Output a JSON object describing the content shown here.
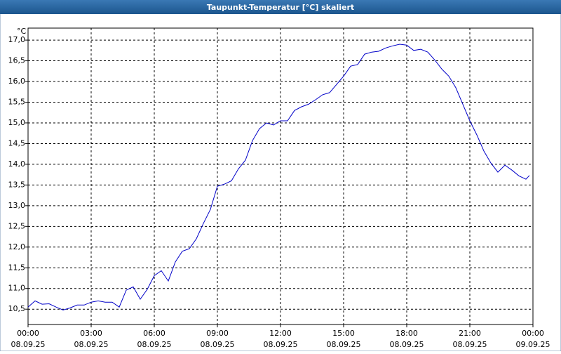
{
  "chart_data": {
    "type": "line",
    "title": "Taupunkt-Temperatur [°C] skaliert",
    "y_unit": "°C",
    "color": "#0000c8",
    "grid": true,
    "x": [
      0,
      20,
      40,
      60,
      80,
      100,
      120,
      140,
      160,
      180,
      200,
      220,
      240,
      260,
      280,
      300,
      320,
      340,
      360,
      380,
      400,
      420,
      440,
      460,
      480,
      500,
      520,
      540,
      560,
      580,
      600,
      620,
      640,
      660,
      680,
      700,
      720,
      740,
      760,
      780,
      800,
      820,
      840,
      860,
      880,
      900,
      920,
      940,
      960,
      980,
      1000,
      1020,
      1040,
      1060,
      1080,
      1100,
      1120,
      1140,
      1160,
      1180,
      1200,
      1220,
      1240,
      1260,
      1280,
      1300,
      1320,
      1340,
      1360,
      1380,
      1400,
      1420,
      1430
    ],
    "values": [
      10.55,
      10.7,
      10.62,
      10.63,
      10.55,
      10.48,
      10.53,
      10.6,
      10.6,
      10.67,
      10.7,
      10.67,
      10.67,
      10.55,
      10.96,
      11.04,
      10.74,
      10.98,
      11.31,
      11.43,
      11.18,
      11.64,
      11.9,
      11.96,
      12.2,
      12.57,
      12.91,
      13.47,
      13.52,
      13.6,
      13.89,
      14.1,
      14.57,
      14.86,
      15.0,
      14.95,
      15.05,
      15.05,
      15.3,
      15.39,
      15.45,
      15.56,
      15.68,
      15.73,
      15.93,
      16.13,
      16.37,
      16.41,
      16.66,
      16.71,
      16.73,
      16.81,
      16.86,
      16.9,
      16.88,
      16.75,
      16.78,
      16.71,
      16.52,
      16.3,
      16.13,
      15.85,
      15.45,
      15.05,
      14.71,
      14.32,
      14.03,
      13.81,
      13.98,
      13.86,
      13.72,
      13.64,
      13.73
    ],
    "xlim": [
      0,
      1440
    ],
    "xticks": [
      {
        "value": 0,
        "label": "00:00"
      },
      {
        "value": 180,
        "label": "03:00"
      },
      {
        "value": 360,
        "label": "06:00"
      },
      {
        "value": 540,
        "label": "09:00"
      },
      {
        "value": 720,
        "label": "12:00"
      },
      {
        "value": 900,
        "label": "15:00"
      },
      {
        "value": 1080,
        "label": "18:00"
      },
      {
        "value": 1260,
        "label": "21:00"
      },
      {
        "value": 1440,
        "label": "00:00"
      }
    ],
    "xtick_dates": [
      "08.09.25",
      "08.09.25",
      "08.09.25",
      "08.09.25",
      "08.09.25",
      "08.09.25",
      "08.09.25",
      "08.09.25",
      "09.09.25"
    ],
    "ylim": [
      10.13,
      17.29
    ],
    "yticks": [
      {
        "value": 10.5,
        "label": "10,5"
      },
      {
        "value": 11,
        "label": "11,0"
      },
      {
        "value": 11.5,
        "label": "11,5"
      },
      {
        "value": 12,
        "label": "12,0"
      },
      {
        "value": 12.5,
        "label": "12,5"
      },
      {
        "value": 13,
        "label": "13,0"
      },
      {
        "value": 13.5,
        "label": "13,5"
      },
      {
        "value": 14,
        "label": "14,0"
      },
      {
        "value": 14.5,
        "label": "14,5"
      },
      {
        "value": 15,
        "label": "15,0"
      },
      {
        "value": 15.5,
        "label": "15,5"
      },
      {
        "value": 16,
        "label": "16,0"
      },
      {
        "value": 16.5,
        "label": "16,5"
      },
      {
        "value": 17,
        "label": "17,0"
      }
    ]
  }
}
